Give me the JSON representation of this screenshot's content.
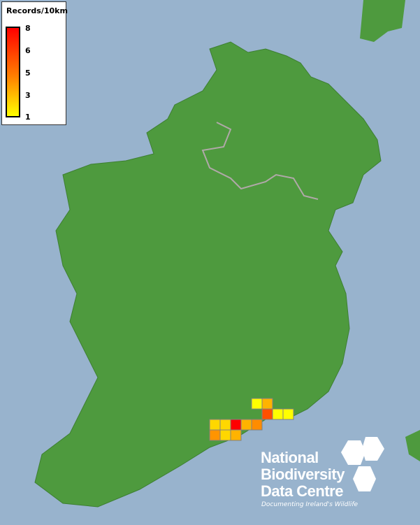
{
  "legend": {
    "title": "Records/10km",
    "ticks": [
      "8",
      "6",
      "5",
      "3",
      "1"
    ],
    "gradient_colors": [
      "#ffff00",
      "#ff8000",
      "#ff0000"
    ]
  },
  "map": {
    "sea_color": "#98b3cd",
    "land_color": "#4e9a3e",
    "grid_squares": [
      {
        "row": 0,
        "col": 4,
        "value": 1,
        "color": "#ffff00"
      },
      {
        "row": 0,
        "col": 5,
        "value": 3,
        "color": "#ffb300"
      },
      {
        "row": 1,
        "col": 5,
        "value": 6,
        "color": "#ff4f00"
      },
      {
        "row": 1,
        "col": 6,
        "value": 1,
        "color": "#ffff00"
      },
      {
        "row": 1,
        "col": 7,
        "value": 1,
        "color": "#ffff00"
      },
      {
        "row": 2,
        "col": 0,
        "value": 2,
        "color": "#ffd700"
      },
      {
        "row": 2,
        "col": 1,
        "value": 2,
        "color": "#ffd700"
      },
      {
        "row": 2,
        "col": 2,
        "value": 8,
        "color": "#ff0000"
      },
      {
        "row": 2,
        "col": 3,
        "value": 3,
        "color": "#ffb300"
      },
      {
        "row": 2,
        "col": 4,
        "value": 5,
        "color": "#ff8c00"
      },
      {
        "row": 3,
        "col": 0,
        "value": 5,
        "color": "#ff9400"
      },
      {
        "row": 3,
        "col": 1,
        "value": 2,
        "color": "#ffd700"
      },
      {
        "row": 3,
        "col": 2,
        "value": 3,
        "color": "#ffb300"
      }
    ]
  },
  "logo": {
    "line1": "National",
    "line2": "Biodiversity",
    "line3": "Data Centre",
    "tagline": "Documenting Ireland's Wildlife"
  }
}
